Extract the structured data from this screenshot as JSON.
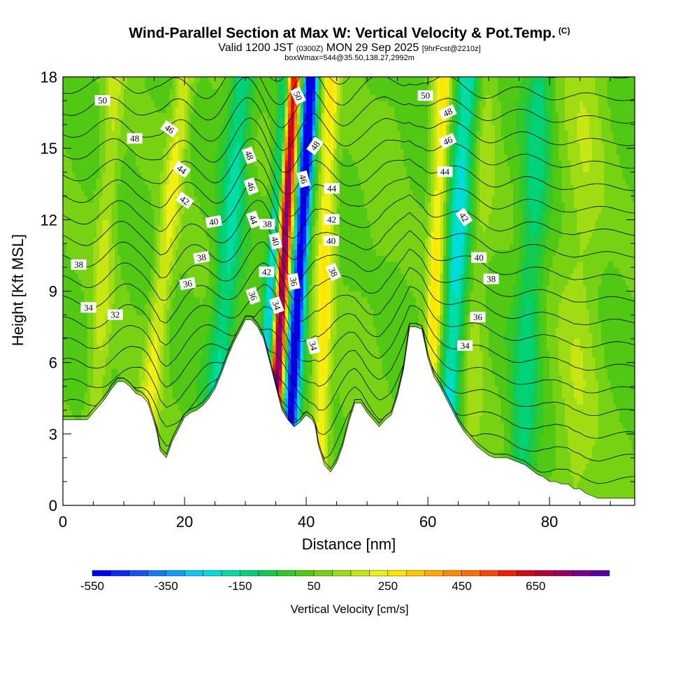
{
  "title": "Wind-Parallel Section at Max W: Vertical Velocity & Pot.Temp.",
  "title_mark": "(C)",
  "valid_prefix": "Valid 1200 JST",
  "valid_utc": "(0300Z)",
  "valid_date": "MON 29 Sep 2025",
  "forecast_info": "[9hrFcst@2210z]",
  "box_info": "boxWmax=544@35.50,138.27,2992m",
  "chart_data": {
    "type": "heatmap",
    "title": "Wind-Parallel Section at Max W: Vertical Velocity & Pot.Temp.",
    "xlabel": "Distance [nm]",
    "ylabel": "Height [Kft MSL]",
    "xlim": [
      0,
      94
    ],
    "ylim": [
      0,
      18
    ],
    "xticks": [
      0,
      20,
      40,
      60,
      80
    ],
    "xtick_labels": [
      "0",
      "20",
      "40",
      "60",
      "80"
    ],
    "yticks": [
      0,
      3,
      6,
      9,
      12,
      15,
      18
    ],
    "ytick_labels": [
      "0",
      "3",
      "6",
      "9",
      "12",
      "15",
      "18"
    ],
    "colorbar": {
      "title": "Vertical Velocity [cm/s]",
      "min": -550,
      "max": 850,
      "step": 50,
      "tick_values": [
        -550,
        -350,
        -150,
        50,
        250,
        450,
        650
      ],
      "tick_labels": [
        "-550",
        "-350",
        "-150",
        "50",
        "250",
        "450",
        "650"
      ]
    },
    "terrain_kft": [
      [
        0,
        3.6
      ],
      [
        2,
        3.6
      ],
      [
        4,
        3.6
      ],
      [
        5,
        3.9
      ],
      [
        6,
        4.2
      ],
      [
        7,
        4.5
      ],
      [
        8,
        4.9
      ],
      [
        9,
        5.2
      ],
      [
        10,
        5.2
      ],
      [
        11,
        5.0
      ],
      [
        12,
        4.7
      ],
      [
        13,
        4.6
      ],
      [
        14,
        4.3
      ],
      [
        15,
        3.5
      ],
      [
        15.5,
        3.0
      ],
      [
        16,
        2.3
      ],
      [
        17,
        2.0
      ],
      [
        18,
        2.7
      ],
      [
        19,
        3.2
      ],
      [
        20,
        3.7
      ],
      [
        21,
        3.9
      ],
      [
        22,
        4.0
      ],
      [
        23,
        4.2
      ],
      [
        24,
        4.5
      ],
      [
        25,
        4.9
      ],
      [
        26,
        5.5
      ],
      [
        27,
        6.2
      ],
      [
        28,
        6.8
      ],
      [
        29,
        7.3
      ],
      [
        30,
        7.8
      ],
      [
        31,
        7.8
      ],
      [
        32,
        7.5
      ],
      [
        33,
        7.0
      ],
      [
        34,
        6.0
      ],
      [
        35,
        5.0
      ],
      [
        36,
        4.0
      ],
      [
        37,
        3.6
      ],
      [
        38,
        3.3
      ],
      [
        39,
        3.5
      ],
      [
        40,
        3.8
      ],
      [
        41,
        3.6
      ],
      [
        41.5,
        3.3
      ],
      [
        42,
        2.5
      ],
      [
        43,
        1.7
      ],
      [
        44,
        1.4
      ],
      [
        45,
        1.8
      ],
      [
        46,
        2.5
      ],
      [
        47,
        3.5
      ],
      [
        48,
        4.3
      ],
      [
        49,
        4.3
      ],
      [
        50,
        3.9
      ],
      [
        51,
        3.6
      ],
      [
        52,
        3.3
      ],
      [
        53,
        3.6
      ],
      [
        54,
        3.8
      ],
      [
        55,
        4.6
      ],
      [
        56,
        5.7
      ],
      [
        57,
        7.5
      ],
      [
        58,
        7.5
      ],
      [
        59,
        7.4
      ],
      [
        60,
        6.2
      ],
      [
        61,
        5.4
      ],
      [
        62,
        5.0
      ],
      [
        63,
        4.5
      ],
      [
        64,
        4.0
      ],
      [
        65,
        3.5
      ],
      [
        66,
        3.1
      ],
      [
        67,
        2.8
      ],
      [
        68,
        2.5
      ],
      [
        69,
        2.3
      ],
      [
        70,
        2.1
      ],
      [
        71,
        2.0
      ],
      [
        72,
        2.0
      ],
      [
        73,
        2.0
      ],
      [
        74,
        1.9
      ],
      [
        75,
        1.8
      ],
      [
        76,
        1.7
      ],
      [
        77,
        1.5
      ],
      [
        78,
        1.3
      ],
      [
        79,
        1.2
      ],
      [
        80,
        1.0
      ],
      [
        81,
        1.0
      ],
      [
        82,
        0.9
      ],
      [
        83,
        0.9
      ],
      [
        84,
        0.7
      ],
      [
        85,
        0.7
      ],
      [
        86,
        0.5
      ],
      [
        87,
        0.4
      ],
      [
        88,
        0.3
      ],
      [
        90,
        0.3
      ],
      [
        92,
        0.3
      ],
      [
        94,
        0.3
      ]
    ],
    "w_features": [
      {
        "x0": 12.5,
        "x1": 20.0,
        "width": 1.6,
        "amp": 170
      },
      {
        "x0": 4.5,
        "x1": 8.5,
        "width": 1.6,
        "amp": 120
      },
      {
        "x0": 24.0,
        "x1": 29.5,
        "width": 2.0,
        "amp": -200
      },
      {
        "x0": 32.0,
        "x1": 37.0,
        "width": 1.1,
        "amp": -420
      },
      {
        "x0": 34.0,
        "x1": 37.8,
        "width": 1.2,
        "amp": 820
      },
      {
        "x0": 36.2,
        "x1": 40.6,
        "width": 1.2,
        "amp": -520
      },
      {
        "x0": 37.3,
        "x1": 41.2,
        "width": 0.9,
        "amp": -200
      },
      {
        "x0": 42.0,
        "x1": 44.0,
        "width": 1.4,
        "amp": 230
      },
      {
        "x0": 46.0,
        "x1": 55.0,
        "width": 3.0,
        "amp": 30
      },
      {
        "x0": 60.0,
        "x1": 62.5,
        "width": 1.4,
        "amp": 230
      },
      {
        "x0": 62.5,
        "x1": 66.5,
        "width": 2.0,
        "amp": -260
      },
      {
        "x0": 66.0,
        "x1": 70.0,
        "width": 2.0,
        "amp": 80
      },
      {
        "x0": 75.0,
        "x1": 78.5,
        "width": 2.2,
        "amp": -160
      },
      {
        "x0": 84.0,
        "x1": 86.0,
        "width": 3.5,
        "amp": 90
      }
    ],
    "theta_levels_c": [
      32,
      33,
      34,
      35,
      36,
      37,
      38,
      39,
      40,
      41,
      42,
      43,
      44,
      45,
      46,
      47,
      48,
      49,
      50,
      51
    ],
    "contour_labels": [
      {
        "x": 6.5,
        "y": 17.0,
        "text": "50",
        "angle": 0
      },
      {
        "x": 11.8,
        "y": 15.4,
        "text": "48",
        "angle": 0
      },
      {
        "x": 17.5,
        "y": 15.8,
        "text": "46",
        "angle": 35
      },
      {
        "x": 19.5,
        "y": 14.1,
        "text": "44",
        "angle": 35
      },
      {
        "x": 20.0,
        "y": 12.8,
        "text": "42",
        "angle": 35
      },
      {
        "x": 24.8,
        "y": 11.9,
        "text": "40",
        "angle": -10
      },
      {
        "x": 22.8,
        "y": 10.4,
        "text": "38",
        "angle": -10
      },
      {
        "x": 20.5,
        "y": 9.3,
        "text": "36",
        "angle": -10
      },
      {
        "x": 2.6,
        "y": 10.1,
        "text": "38",
        "angle": 0
      },
      {
        "x": 4.2,
        "y": 8.3,
        "text": "34",
        "angle": 0
      },
      {
        "x": 8.6,
        "y": 8.0,
        "text": "32",
        "angle": 0
      },
      {
        "x": 30.6,
        "y": 14.7,
        "text": "48",
        "angle": 70
      },
      {
        "x": 30.9,
        "y": 13.4,
        "text": "46",
        "angle": 70
      },
      {
        "x": 31.3,
        "y": 12.0,
        "text": "44",
        "angle": 70
      },
      {
        "x": 33.6,
        "y": 11.8,
        "text": "38",
        "angle": 0
      },
      {
        "x": 34.9,
        "y": 11.1,
        "text": "40",
        "angle": 75
      },
      {
        "x": 33.5,
        "y": 9.8,
        "text": "42",
        "angle": 0
      },
      {
        "x": 31.2,
        "y": 8.8,
        "text": "36",
        "angle": 70
      },
      {
        "x": 35.1,
        "y": 8.4,
        "text": "34",
        "angle": 70
      },
      {
        "x": 37.9,
        "y": 9.4,
        "text": "36",
        "angle": 80
      },
      {
        "x": 38.6,
        "y": 17.2,
        "text": "50",
        "angle": 65
      },
      {
        "x": 41.5,
        "y": 15.1,
        "text": "48",
        "angle": -55
      },
      {
        "x": 39.5,
        "y": 13.7,
        "text": "46",
        "angle": 75
      },
      {
        "x": 44.2,
        "y": 13.3,
        "text": "44",
        "angle": 0
      },
      {
        "x": 44.2,
        "y": 12.0,
        "text": "42",
        "angle": 0
      },
      {
        "x": 44.1,
        "y": 11.1,
        "text": "40",
        "angle": 0
      },
      {
        "x": 44.4,
        "y": 9.8,
        "text": "38",
        "angle": 65
      },
      {
        "x": 41.1,
        "y": 6.7,
        "text": "34",
        "angle": 75
      },
      {
        "x": 59.6,
        "y": 17.2,
        "text": "50",
        "angle": 0
      },
      {
        "x": 63.3,
        "y": 16.5,
        "text": "48",
        "angle": -25
      },
      {
        "x": 63.3,
        "y": 15.3,
        "text": "46",
        "angle": -25
      },
      {
        "x": 62.8,
        "y": 14.0,
        "text": "44",
        "angle": 0
      },
      {
        "x": 65.9,
        "y": 12.1,
        "text": "42",
        "angle": 55
      },
      {
        "x": 68.4,
        "y": 10.4,
        "text": "40",
        "angle": 0
      },
      {
        "x": 70.4,
        "y": 9.5,
        "text": "38",
        "angle": 0
      },
      {
        "x": 68.2,
        "y": 7.9,
        "text": "36",
        "angle": 0
      },
      {
        "x": 66.1,
        "y": 6.7,
        "text": "34",
        "angle": 0
      }
    ]
  }
}
